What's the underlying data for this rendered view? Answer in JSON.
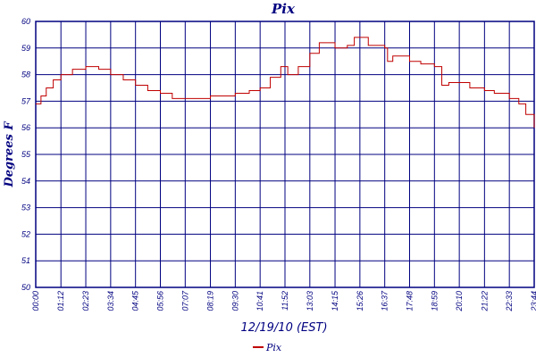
{
  "chart_data": {
    "type": "line",
    "title": "Pix",
    "xlabel": "12/19/10 (EST)",
    "ylabel": "Degrees F",
    "ylim": [
      50,
      60
    ],
    "yticks": [
      50,
      51,
      52,
      53,
      54,
      55,
      56,
      57,
      58,
      59,
      60
    ],
    "xticks": [
      "00:00",
      "01:12",
      "02:23",
      "03:34",
      "04:45",
      "05:56",
      "07:07",
      "08:19",
      "09:30",
      "10:41",
      "11:52",
      "13:03",
      "14:15",
      "15:26",
      "16:37",
      "17:48",
      "18:59",
      "20:10",
      "21:22",
      "22:33",
      "23:44"
    ],
    "xlim": [
      "00:00",
      "23:44"
    ],
    "grid": true,
    "legend": "bottom-center",
    "colors": {
      "series": "#c00000",
      "grid": "#000080",
      "text": "#000080"
    },
    "series": [
      {
        "name": "Pix",
        "x": [
          "00:00",
          "00:15",
          "00:30",
          "00:50",
          "01:12",
          "01:45",
          "02:23",
          "03:00",
          "03:34",
          "04:10",
          "04:45",
          "05:20",
          "05:56",
          "06:30",
          "07:07",
          "07:45",
          "08:19",
          "09:00",
          "09:30",
          "10:10",
          "10:41",
          "11:10",
          "11:40",
          "12:00",
          "12:30",
          "13:03",
          "13:30",
          "14:15",
          "14:50",
          "15:10",
          "15:26",
          "15:50",
          "16:37",
          "16:45",
          "17:00",
          "17:48",
          "18:20",
          "18:59",
          "19:20",
          "19:40",
          "20:10",
          "20:40",
          "21:22",
          "21:50",
          "22:33",
          "23:00",
          "23:20",
          "23:44"
        ],
        "y": [
          56.9,
          57.2,
          57.5,
          57.8,
          58.0,
          58.2,
          58.3,
          58.2,
          58.0,
          57.8,
          57.6,
          57.4,
          57.3,
          57.1,
          57.1,
          57.1,
          57.2,
          57.2,
          57.3,
          57.4,
          57.5,
          57.9,
          58.3,
          58.0,
          58.3,
          58.8,
          59.2,
          59.0,
          59.1,
          59.4,
          59.4,
          59.1,
          59.0,
          58.5,
          58.7,
          58.5,
          58.4,
          58.3,
          57.6,
          57.7,
          57.7,
          57.5,
          57.4,
          57.3,
          57.1,
          56.9,
          56.5,
          56.0
        ]
      }
    ]
  }
}
